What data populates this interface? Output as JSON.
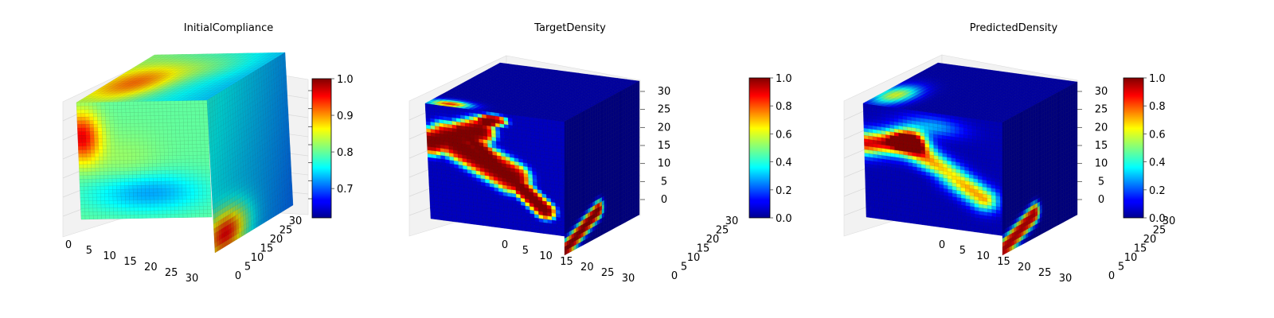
{
  "chart_data": [
    {
      "type": "heatmap",
      "title": "InitialCompliance",
      "x_ticks": [
        "0",
        "5",
        "10",
        "15",
        "20",
        "25",
        "30"
      ],
      "y_ticks": [
        "0",
        "5",
        "10",
        "15",
        "20",
        "25",
        "30"
      ],
      "z_ticks": [],
      "colormap": "jet",
      "colorbar": {
        "min": 0.62,
        "max": 1.0,
        "ticks": [
          "0.7",
          "0.8",
          "0.9",
          "1.0"
        ],
        "tick_values": [
          0.7,
          0.8,
          0.9,
          1.0
        ]
      },
      "grid_size": 32
    },
    {
      "type": "heatmap",
      "title": "TargetDensity",
      "x_ticks": [
        "0",
        "5",
        "10",
        "15",
        "20",
        "25",
        "30"
      ],
      "y_ticks": [
        "0",
        "5",
        "10",
        "15",
        "20",
        "25",
        "30"
      ],
      "z_ticks": [
        "0",
        "5",
        "10",
        "15",
        "20",
        "25",
        "30"
      ],
      "colormap": "jet",
      "colorbar": {
        "min": 0.0,
        "max": 1.0,
        "ticks": [
          "0.0",
          "0.2",
          "0.4",
          "0.6",
          "0.8",
          "1.0"
        ],
        "tick_values": [
          0,
          0.2,
          0.4,
          0.6,
          0.8,
          1.0
        ]
      },
      "grid_size": 32
    },
    {
      "type": "heatmap",
      "title": "PredictedDensity",
      "x_ticks": [
        "0",
        "5",
        "10",
        "15",
        "20",
        "25",
        "30"
      ],
      "y_ticks": [
        "0",
        "5",
        "10",
        "15",
        "20",
        "25",
        "30"
      ],
      "z_ticks": [
        "0",
        "5",
        "10",
        "15",
        "20",
        "25",
        "30"
      ],
      "colormap": "jet",
      "colorbar": {
        "min": 0.0,
        "max": 1.0,
        "ticks": [
          "0.0",
          "0.2",
          "0.4",
          "0.6",
          "0.8",
          "1.0"
        ],
        "tick_values": [
          0,
          0.2,
          0.4,
          0.6,
          0.8,
          1.0
        ]
      },
      "grid_size": 32
    }
  ]
}
